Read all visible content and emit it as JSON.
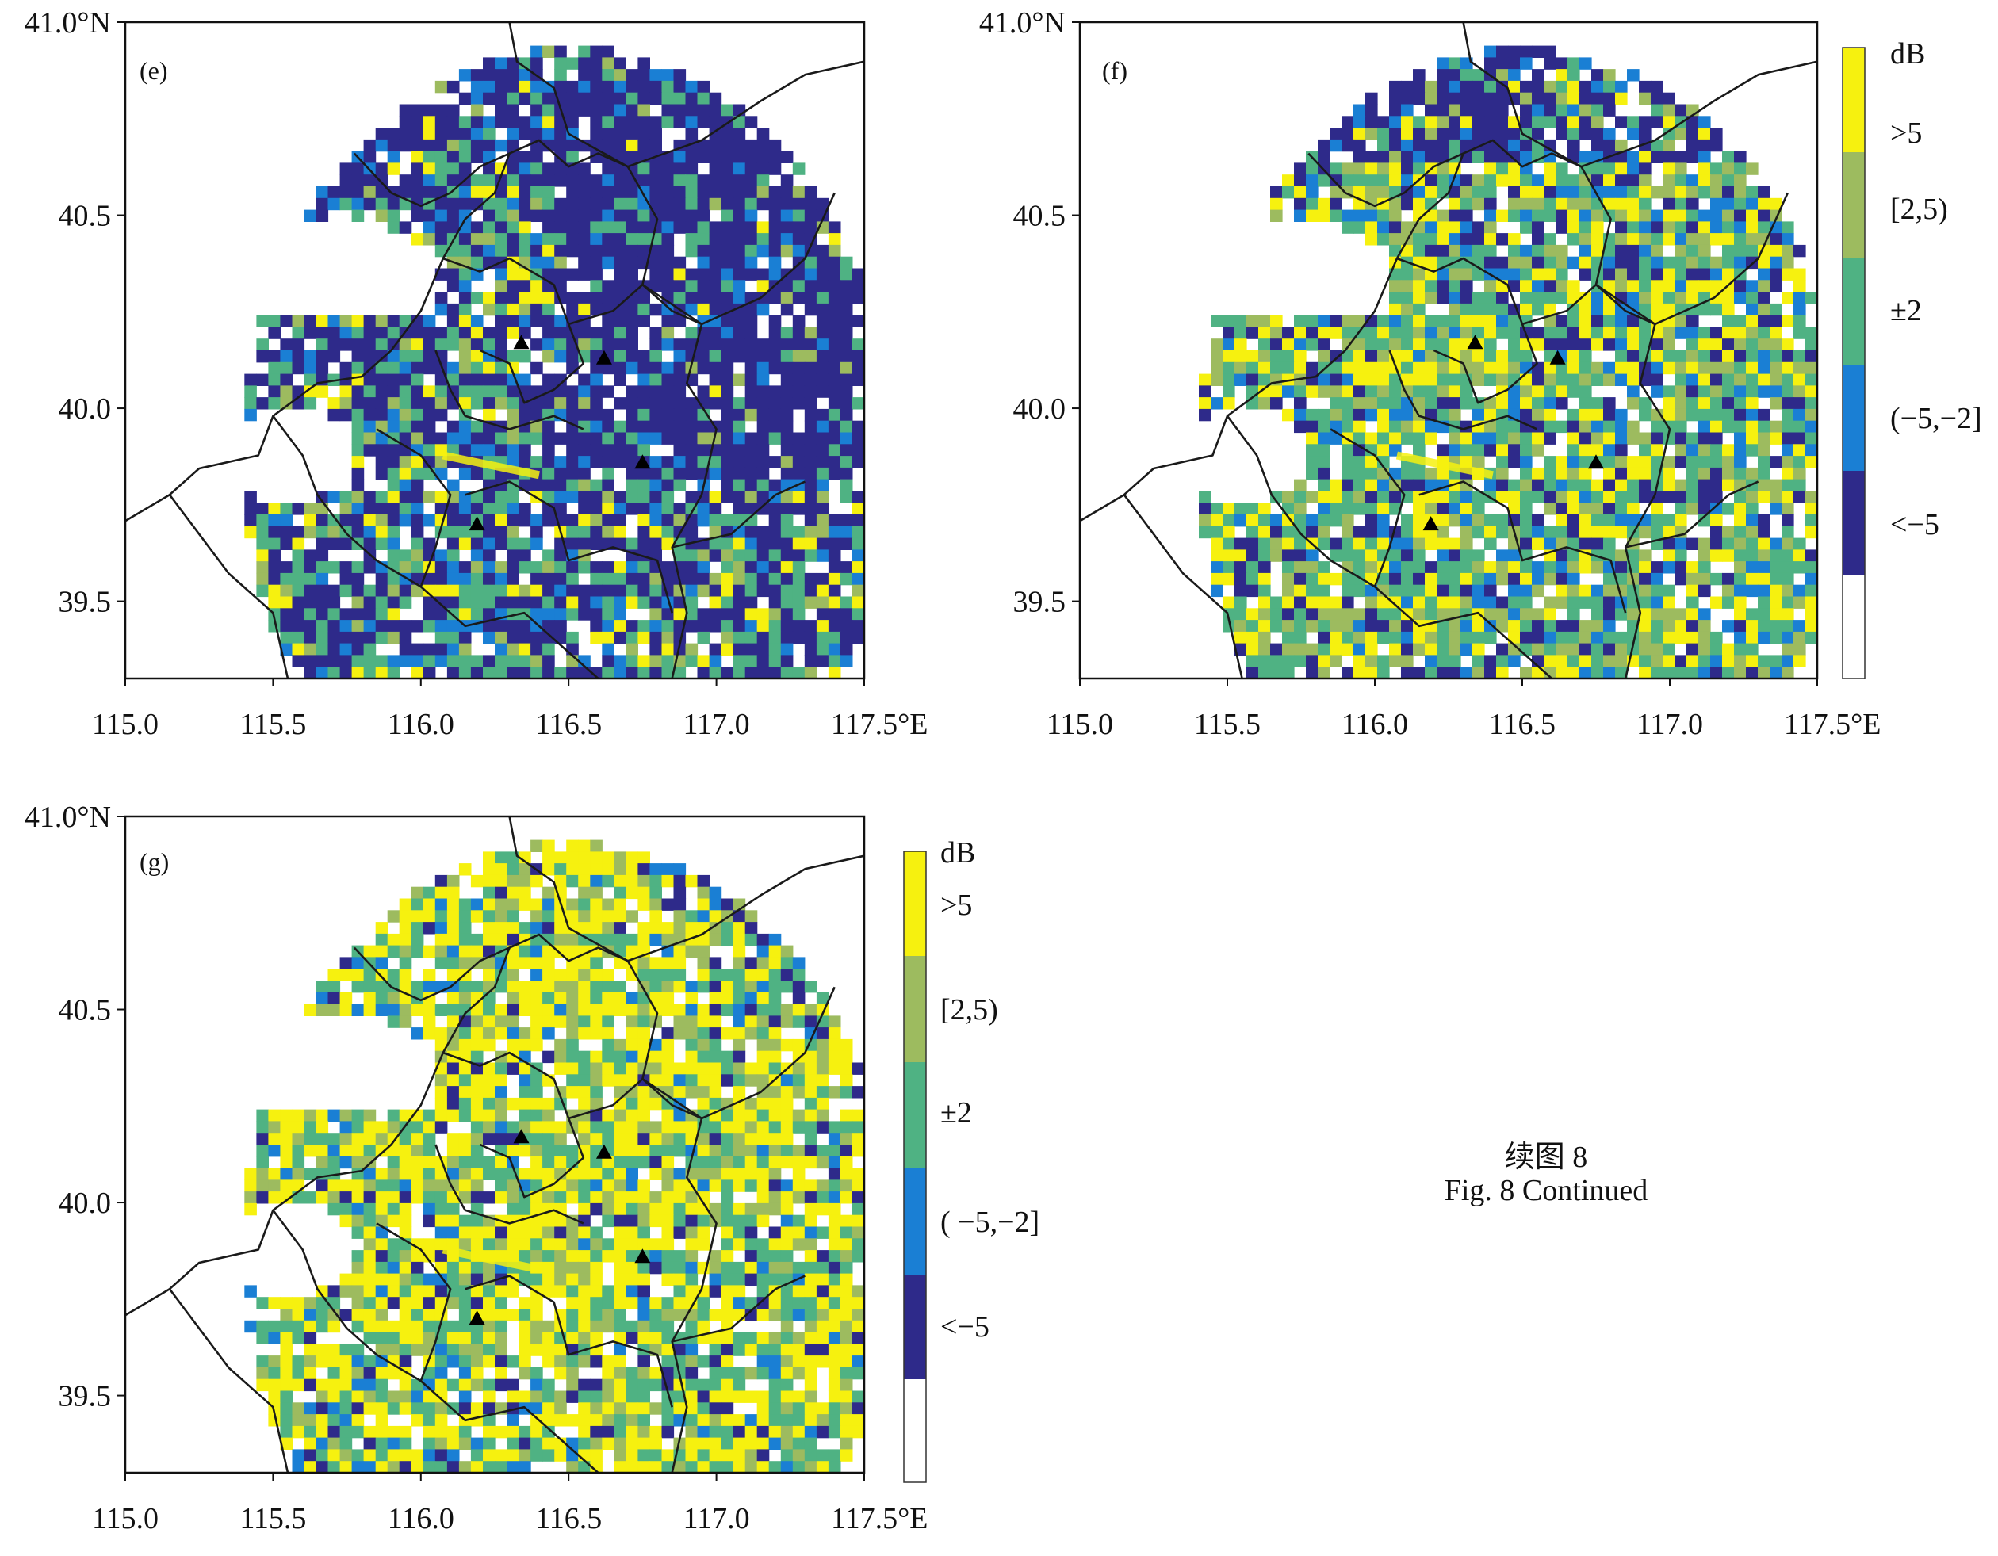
{
  "caption": {
    "line1": "续图 8",
    "line2": "Fig. 8    Continued"
  },
  "colors": {
    "gt5": "#f6f10f",
    "2to5": "#9dbb5f",
    "pm2": "#4fb283",
    "m5to_m2": "#1a7fd4",
    "ltm5": "#2e2a8a",
    "none": "#ffffff",
    "border": "#1a1a1a"
  },
  "chart_data": [
    {
      "type": "heatmap",
      "panel_label": "(e)",
      "x_axis": {
        "range": [
          115.0,
          117.5
        ],
        "ticks": [
          "115.0",
          "115.5",
          "116.0",
          "116.5",
          "117.0",
          "117.5°E"
        ]
      },
      "y_axis": {
        "range": [
          39.3,
          41.0
        ],
        "ticks": [
          "41.0°N",
          "40.5",
          "40.0",
          "39.5"
        ]
      },
      "stations": [
        [
          116.34,
          40.17
        ],
        [
          116.62,
          40.13
        ],
        [
          116.75,
          39.86
        ],
        [
          116.19,
          39.7
        ]
      ],
      "dominant_category": "<-5"
    },
    {
      "type": "heatmap",
      "panel_label": "(f)",
      "x_axis": {
        "range": [
          115.0,
          117.5
        ],
        "ticks": [
          "115.0",
          "115.5",
          "116.0",
          "116.5",
          "117.0",
          "117.5°E"
        ]
      },
      "y_axis": {
        "range": [
          39.3,
          41.0
        ],
        "ticks": [
          "41.0°N",
          "40.5",
          "40.0",
          "39.5"
        ]
      },
      "stations": [
        [
          116.34,
          40.17
        ],
        [
          116.62,
          40.13
        ],
        [
          116.75,
          39.86
        ],
        [
          116.19,
          39.7
        ]
      ],
      "dominant_category": "±2",
      "colorbar": {
        "unit": "dB",
        "labels": [
          ">5",
          "[2,5)",
          "±2",
          "(−5,−2]",
          "<−5"
        ]
      }
    },
    {
      "type": "heatmap",
      "panel_label": "(g)",
      "x_axis": {
        "range": [
          115.0,
          117.5
        ],
        "ticks": [
          "115.0",
          "115.5",
          "116.0",
          "116.5",
          "117.0",
          "117.5°E"
        ]
      },
      "y_axis": {
        "range": [
          39.3,
          41.0
        ],
        "ticks": [
          "41.0°N",
          "40.5",
          "40.0",
          "39.5"
        ]
      },
      "stations": [
        [
          116.34,
          40.17
        ],
        [
          116.62,
          40.13
        ],
        [
          116.75,
          39.86
        ],
        [
          116.19,
          39.7
        ]
      ],
      "dominant_category": ">5",
      "colorbar": {
        "unit": "dB",
        "labels": [
          ">5",
          "[2,5)",
          "±2",
          "( −5,−2]",
          "<−5"
        ]
      }
    }
  ]
}
